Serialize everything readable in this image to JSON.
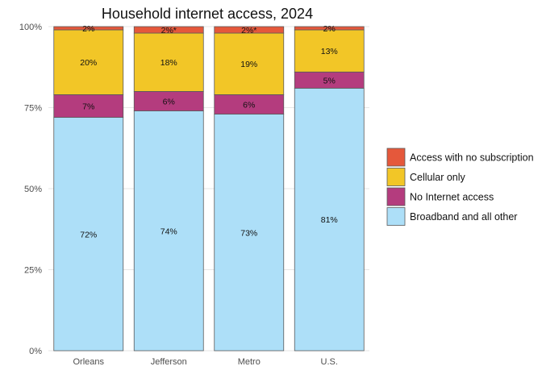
{
  "chart_data": {
    "type": "bar",
    "stacked": true,
    "title": "Household internet access, 2024",
    "xlabel": "",
    "ylabel": "",
    "categories": [
      "Orleans",
      "Jefferson",
      "Metro",
      "U.S."
    ],
    "ylim": [
      0,
      100
    ],
    "y_ticks": [
      0,
      25,
      50,
      75,
      100
    ],
    "y_tick_labels": [
      "0%",
      "25%",
      "50%",
      "75%",
      "100%"
    ],
    "grid": true,
    "legend_position": "right",
    "series": [
      {
        "name": "Broadband and all other",
        "color": "#addff8",
        "values": [
          72,
          74,
          73,
          81
        ],
        "labels": [
          "72%",
          "74%",
          "73%",
          "81%"
        ]
      },
      {
        "name": "No Internet access",
        "color": "#b43c7e",
        "values": [
          7,
          6,
          6,
          5
        ],
        "labels": [
          "7%",
          "6%",
          "6%",
          "5%"
        ]
      },
      {
        "name": "Cellular only",
        "color": "#f2c627",
        "values": [
          20,
          18,
          19,
          13
        ],
        "labels": [
          "20%",
          "18%",
          "19%",
          "13%"
        ]
      },
      {
        "name": "Access with no subscription",
        "color": "#e5583b",
        "values": [
          2,
          2,
          2,
          2
        ],
        "labels": [
          "2%",
          "2%*",
          "2%*",
          "2%"
        ]
      }
    ],
    "legend_order": [
      "Access with no subscription",
      "Cellular only",
      "No Internet access",
      "Broadband and all other"
    ]
  }
}
